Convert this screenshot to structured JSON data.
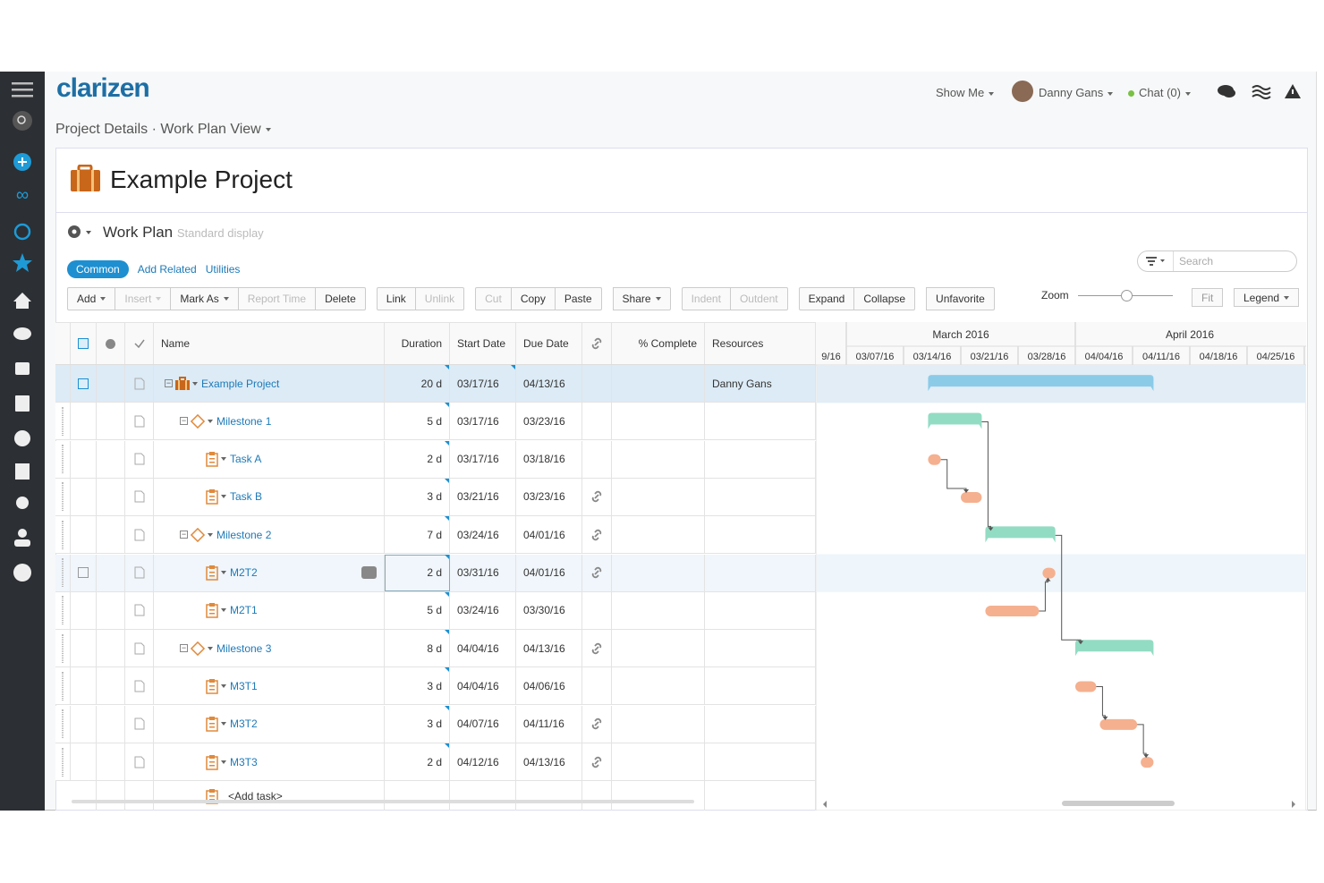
{
  "header": {
    "logo": "clarizen",
    "show_me": "Show Me",
    "user": "Danny Gans",
    "chat": "Chat (0)"
  },
  "breadcrumb": {
    "project_details": "Project Details",
    "separator": "·",
    "view": "Work Plan View"
  },
  "project": {
    "title": "Example Project"
  },
  "work_plan": {
    "title": "Work Plan",
    "subtitle": "Standard display"
  },
  "tabs": [
    "Common",
    "Add Related",
    "Utilities"
  ],
  "search_placeholder": "Search",
  "toolbar": [
    [
      {
        "label": "Add",
        "menu": true
      },
      {
        "label": "Insert",
        "menu": true,
        "disabled": true
      },
      {
        "label": "Mark As",
        "menu": true
      },
      {
        "label": "Report Time",
        "disabled": true
      },
      {
        "label": "Delete"
      }
    ],
    [
      {
        "label": "Link"
      },
      {
        "label": "Unlink",
        "disabled": true
      }
    ],
    [
      {
        "label": "Cut",
        "disabled": true
      },
      {
        "label": "Copy"
      },
      {
        "label": "Paste"
      }
    ],
    [
      {
        "label": "Share",
        "menu": true
      }
    ],
    [
      {
        "label": "Indent",
        "disabled": true
      },
      {
        "label": "Outdent",
        "disabled": true
      }
    ],
    [
      {
        "label": "Expand"
      },
      {
        "label": "Collapse"
      }
    ],
    [
      {
        "label": "Unfavorite"
      }
    ]
  ],
  "zoom": "Zoom",
  "fit": "Fit",
  "legend": "Legend",
  "table": {
    "columns": {
      "name": "Name",
      "duration": "Duration",
      "start": "Start Date",
      "due": "Due Date",
      "complete": "% Complete",
      "resources": "Resources"
    },
    "rows": [
      {
        "kind": "project",
        "name": "Example Project",
        "duration": "20 d",
        "start": "03/17/16",
        "due": "04/13/16",
        "resources": "Danny Gans"
      },
      {
        "kind": "milestone",
        "name": "Milestone 1",
        "duration": "5 d",
        "start": "03/17/16",
        "due": "03/23/16"
      },
      {
        "kind": "task",
        "name": "Task A",
        "duration": "2 d",
        "start": "03/17/16",
        "due": "03/18/16"
      },
      {
        "kind": "task",
        "name": "Task B",
        "duration": "3 d",
        "start": "03/21/16",
        "due": "03/23/16",
        "linked": true
      },
      {
        "kind": "milestone",
        "name": "Milestone 2",
        "duration": "7 d",
        "start": "03/24/16",
        "due": "04/01/16",
        "linked": true
      },
      {
        "kind": "task",
        "name": "M2T2",
        "duration": "2 d",
        "start": "03/31/16",
        "due": "04/01/16",
        "linked": true
      },
      {
        "kind": "task",
        "name": "M2T1",
        "duration": "5 d",
        "start": "03/24/16",
        "due": "03/30/16"
      },
      {
        "kind": "milestone",
        "name": "Milestone 3",
        "duration": "8 d",
        "start": "04/04/16",
        "due": "04/13/16",
        "linked": true
      },
      {
        "kind": "task",
        "name": "M3T1",
        "duration": "3 d",
        "start": "04/04/16",
        "due": "04/06/16"
      },
      {
        "kind": "task",
        "name": "M3T2",
        "duration": "3 d",
        "start": "04/07/16",
        "due": "04/11/16",
        "linked": true
      },
      {
        "kind": "task",
        "name": "M3T3",
        "duration": "2 d",
        "start": "04/12/16",
        "due": "04/13/16",
        "linked": true
      }
    ],
    "add_task": "<Add task>"
  },
  "gantt": {
    "months": [
      "March 2016",
      "April 2016"
    ],
    "weeks": [
      "9/16",
      "03/07/16",
      "03/14/16",
      "03/21/16",
      "03/28/16",
      "04/04/16",
      "04/11/16",
      "04/18/16",
      "04/25/16"
    ]
  }
}
